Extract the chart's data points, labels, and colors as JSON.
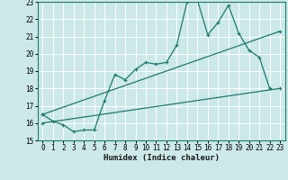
{
  "xlabel": "Humidex (Indice chaleur)",
  "xlim": [
    -0.5,
    23.5
  ],
  "ylim": [
    15,
    23
  ],
  "yticks": [
    15,
    16,
    17,
    18,
    19,
    20,
    21,
    22,
    23
  ],
  "xticks": [
    0,
    1,
    2,
    3,
    4,
    5,
    6,
    7,
    8,
    9,
    10,
    11,
    12,
    13,
    14,
    15,
    16,
    17,
    18,
    19,
    20,
    21,
    22,
    23
  ],
  "bg_color": "#cce8e8",
  "line_color": "#1a7a6e",
  "grid_color": "#ffffff",
  "series1_x": [
    0,
    1,
    2,
    3,
    4,
    5,
    6,
    7,
    8,
    9,
    10,
    11,
    12,
    13,
    14,
    15,
    16,
    17,
    18,
    19,
    20,
    21,
    22
  ],
  "series1_y": [
    16.5,
    16.1,
    15.9,
    15.5,
    15.6,
    15.6,
    17.3,
    18.8,
    18.5,
    19.1,
    19.5,
    19.4,
    19.5,
    20.5,
    23.0,
    23.1,
    21.1,
    21.8,
    22.8,
    21.2,
    20.2,
    19.8,
    18.0
  ],
  "series2_x": [
    0,
    23
  ],
  "series2_y": [
    16.0,
    18.0
  ],
  "series3_x": [
    0,
    23
  ],
  "series3_y": [
    16.5,
    21.3
  ]
}
